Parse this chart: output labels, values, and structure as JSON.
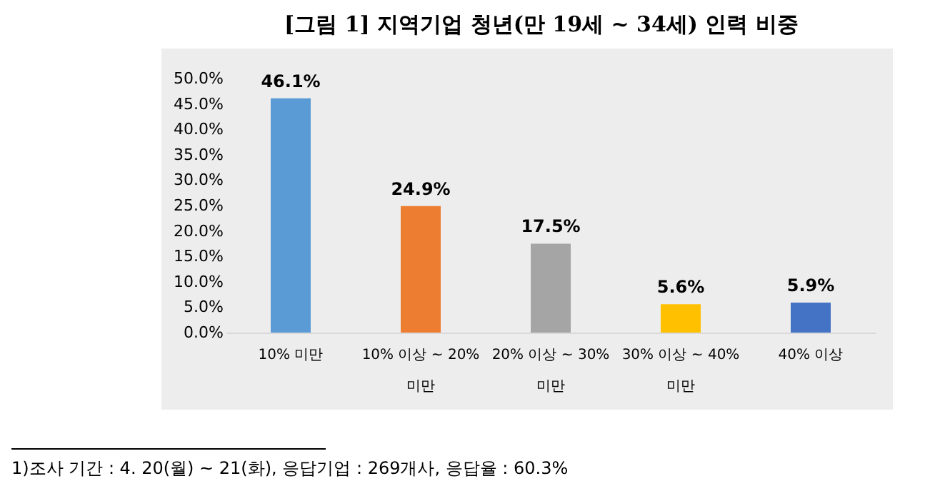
{
  "chart_data": {
    "type": "bar",
    "title": "[그림 1] 지역기업 청년(만 19세 ~ 34세) 인력 비중",
    "categories": [
      "10% 미만",
      "10% 이상 ~ 20% 미만",
      "20% 이상 ~ 30% 미만",
      "30% 이상 ~ 40% 미만",
      "40% 이상"
    ],
    "values": [
      46.1,
      24.9,
      17.5,
      5.6,
      5.9
    ],
    "colors": [
      "#5b9bd5",
      "#ed7d31",
      "#a5a5a5",
      "#ffc000",
      "#4472c4"
    ],
    "value_labels": [
      "46.1%",
      "24.9%",
      "17.5%",
      "5.6%",
      "5.9%"
    ],
    "ylim": [
      0,
      50
    ],
    "yticks": [
      {
        "value": 0,
        "label": "0.0%"
      },
      {
        "value": 5,
        "label": "5.0%"
      },
      {
        "value": 10,
        "label": "10.0%"
      },
      {
        "value": 15,
        "label": "15.0%"
      },
      {
        "value": 20,
        "label": "20.0%"
      },
      {
        "value": 25,
        "label": "25.0%"
      },
      {
        "value": 30,
        "label": "30.0%"
      },
      {
        "value": 35,
        "label": "35.0%"
      },
      {
        "value": 40,
        "label": "40.0%"
      },
      {
        "value": 45,
        "label": "45.0%"
      },
      {
        "value": 50,
        "label": "50.0%"
      }
    ],
    "annotations": [
      "1)조사 기간 : 4. 20(월) ~ 21(화), 응답기업 : 269개사, 응답율 : 60.3%"
    ]
  }
}
